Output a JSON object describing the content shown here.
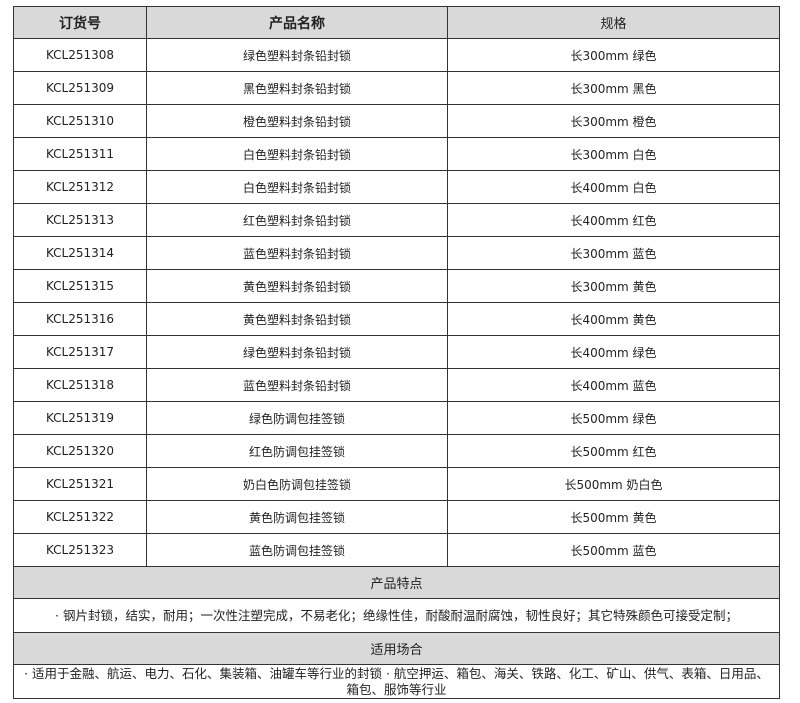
{
  "headers": [
    "订货号",
    "产品名称",
    "规格"
  ],
  "rows": [
    [
      "KCL251308",
      "绿色塑料封条铅封锁",
      "长300mm 绿色"
    ],
    [
      "KCL251309",
      "黑色塑料封条铅封锁",
      "长300mm 黑色"
    ],
    [
      "KCL251310",
      "橙色塑料封条铅封锁",
      "长300mm 橙色"
    ],
    [
      "KCL251311",
      "白色塑料封条铅封锁",
      "长300mm 白色"
    ],
    [
      "KCL251312",
      "白色塑料封条铅封锁",
      "长400mm 白色"
    ],
    [
      "KCL251313",
      "红色塑料封条铅封锁",
      "长400mm 红色"
    ],
    [
      "KCL251314",
      "蓝色塑料封条铅封锁",
      "长300mm 蓝色"
    ],
    [
      "KCL251315",
      "黄色塑料封条铅封锁",
      "长300mm 黄色"
    ],
    [
      "KCL251316",
      "黄色塑料封条铅封锁",
      "长400mm 黄色"
    ],
    [
      "KCL251317",
      "绿色塑料封条铅封锁",
      "长400mm 绿色"
    ],
    [
      "KCL251318",
      "蓝色塑料封条铅封锁",
      "长400mm 蓝色"
    ],
    [
      "KCL251319",
      "绿色防调包挂签锁",
      "长500mm 绿色"
    ],
    [
      "KCL251320",
      "红色防调包挂签锁",
      "长500mm 红色"
    ],
    [
      "KCL251321",
      "奶白色防调包挂签锁",
      "长500mm 奶白色"
    ],
    [
      "KCL251322",
      "黄色防调包挂签锁",
      "长500mm 黄色"
    ],
    [
      "KCL251323",
      "蓝色防调包挂签锁",
      "长500mm 蓝色"
    ]
  ],
  "features": {
    "title": "产品特点",
    "text": "· 钢片封锁，结实，耐用；一次性注塑完成，不易老化；绝缘性佳，耐酸耐温耐腐蚀，韧性良好；其它特殊颜色可接受定制；"
  },
  "applications": {
    "title": "适用场合",
    "text": "· 适用于金融、航运、电力、石化、集装箱、油罐车等行业的封锁 · 航空押运、箱包、海关、铁路、化工、矿山、供气、表箱、日用品、箱包、服饰等行业"
  }
}
